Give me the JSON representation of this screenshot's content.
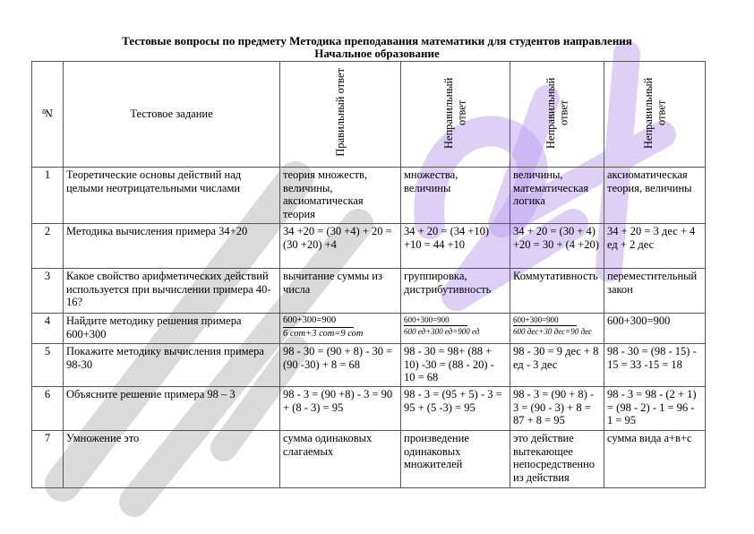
{
  "title_line1": "Тестовые вопросы по предмету Методика преподавания математики для студентов направления",
  "title_line2": "Начальное образование",
  "watermark": {
    "text_gray": "Hulot",
    "text_purple": "24",
    "colors": {
      "gray": "#969696",
      "purple": "#bea0f0"
    }
  },
  "headers": [
    "№",
    "Тестовое задание",
    "Правильный ответ",
    "Неправильный ответ",
    "Неправильный ответ",
    "Неправильный ответ"
  ],
  "rows": [
    {
      "n": "1",
      "q": "Теоретические основы действий над целыми неотрицательными числами",
      "a": [
        "теория множеств, величины, аксиоматическая теория",
        "множества, величины",
        "величины, математическая логика",
        "аксиоматическая теория, величины"
      ]
    },
    {
      "n": "2",
      "q": "Методика вычисления примера 34+20",
      "a": [
        "34 +20 = (30 +4) + 20 = (30 +20) +4",
        "34 + 20 = (34 +10) +10 = 44 +10",
        "34 + 20 = (30 + 4) +20 = 30 + (4 +20)",
        "34 + 20 = 3 дес + 4 ед + 2 дес"
      ]
    },
    {
      "n": "3",
      "q": "Какое свойство арифметических действий используется при вычислении примера 40-16?",
      "a": [
        "вычитание суммы из числа",
        "группировка, дистрибутивность",
        "Коммутативность",
        "переместительный закон"
      ]
    },
    {
      "n": "4",
      "q": "Найдите методику решения примера 600+300",
      "fracs": [
        {
          "top": "600+300=900",
          "bot": "6 сот+3 сот=9 сот"
        },
        {
          "top": "600+300=900",
          "bot": "600 ед+300 ед=900 ед"
        },
        {
          "top": "600+300=900",
          "bot": "600 дес+30 дес=90 дес"
        }
      ],
      "last": "600+300=900"
    },
    {
      "n": "5",
      "q": "Покажите методику вычисления примера 98-30",
      "a": [
        "98 - 30 = (90 + 8) - 30 = (90 -30) + 8 = 68",
        "98 - 30 = 98+ (88 + 10) -30 = (88 - 20) - 10 = 68",
        "98 - 30 = 9 дес + 8 ед - 3 дес",
        "98 - 30 = (98 - 15) - 15 = 33 -15 = 18"
      ]
    },
    {
      "n": "6",
      "q": "Объясните решение примера 98 – 3",
      "a": [
        "98 - 3 = (90 +8) - 3 = 90 + (8 - 3) = 95",
        "98 - 3 = (95 + 5) - 3 = 95 + (5 -3) = 95",
        "98 - 3 = (90 + 8) - 3 = (90 - 3) + 8 = 87 + 8 = 95",
        "98 - 3 = 98 - (2 + 1) = (98 - 2) - 1 = 96 - 1 = 95"
      ]
    },
    {
      "n": "7",
      "q": "Умножение это",
      "a": [
        "сумма одинаковых слагаемых",
        "произведение одинаковых множителей",
        "это действие вытекающее непосредственно из действия",
        "сумма вида а+в+с"
      ]
    }
  ]
}
